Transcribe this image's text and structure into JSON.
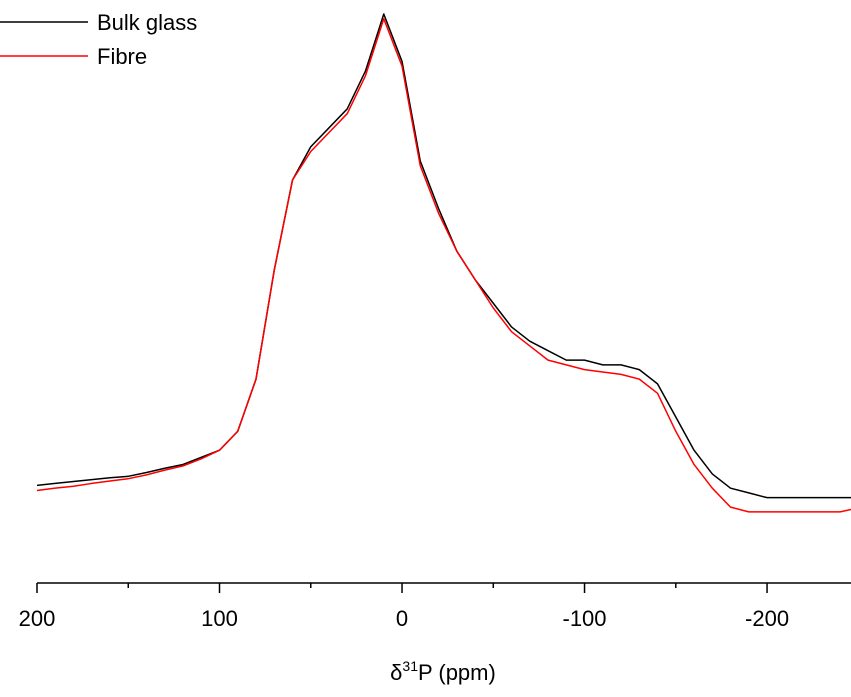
{
  "chart_data": {
    "type": "line",
    "xlabel": {
      "symbol": "δ",
      "superscript": "31",
      "text": "P (ppm)"
    },
    "x": [
      200,
      190,
      180,
      170,
      160,
      150,
      140,
      130,
      120,
      110,
      100,
      90,
      80,
      70,
      60,
      50,
      40,
      30,
      20,
      10,
      0,
      -10,
      -20,
      -30,
      -40,
      -50,
      -60,
      -70,
      -80,
      -90,
      -100,
      -110,
      -120,
      -130,
      -140,
      -150,
      -160,
      -170,
      -180,
      -190,
      -200,
      -210,
      -220,
      -230,
      -240,
      -246
    ],
    "series": [
      {
        "name": "Bulk glass",
        "color": "#000000",
        "values": [
          0.006,
          0.01,
          0.014,
          0.018,
          0.022,
          0.025,
          0.033,
          0.042,
          0.05,
          0.065,
          0.08,
          0.12,
          0.23,
          0.46,
          0.65,
          0.72,
          0.76,
          0.8,
          0.88,
          1.0,
          0.9,
          0.69,
          0.59,
          0.5,
          0.44,
          0.39,
          0.34,
          0.31,
          0.29,
          0.27,
          0.27,
          0.26,
          0.26,
          0.25,
          0.22,
          0.15,
          0.08,
          0.03,
          0.0,
          -0.01,
          -0.02,
          -0.02,
          -0.02,
          -0.02,
          -0.02,
          -0.02
        ]
      },
      {
        "name": "Fibre",
        "color": "#ff0000",
        "values": [
          -0.005,
          0,
          0.004,
          0.01,
          0.015,
          0.02,
          0.028,
          0.038,
          0.047,
          0.062,
          0.08,
          0.12,
          0.23,
          0.46,
          0.65,
          0.71,
          0.75,
          0.79,
          0.87,
          0.99,
          0.89,
          0.68,
          0.58,
          0.5,
          0.44,
          0.38,
          0.33,
          0.3,
          0.27,
          0.26,
          0.25,
          0.245,
          0.24,
          0.23,
          0.2,
          0.12,
          0.05,
          0.0,
          -0.04,
          -0.05,
          -0.05,
          -0.05,
          -0.05,
          -0.05,
          -0.05,
          -0.045
        ]
      }
    ],
    "xlim": [
      200,
      -246
    ],
    "xticks": [
      200,
      100,
      0,
      -100,
      -200
    ],
    "xminorticks": [
      150,
      50,
      -50,
      -150,
      -250
    ],
    "ylim": [
      -0.2,
      1.0
    ],
    "legend": "top-left"
  }
}
